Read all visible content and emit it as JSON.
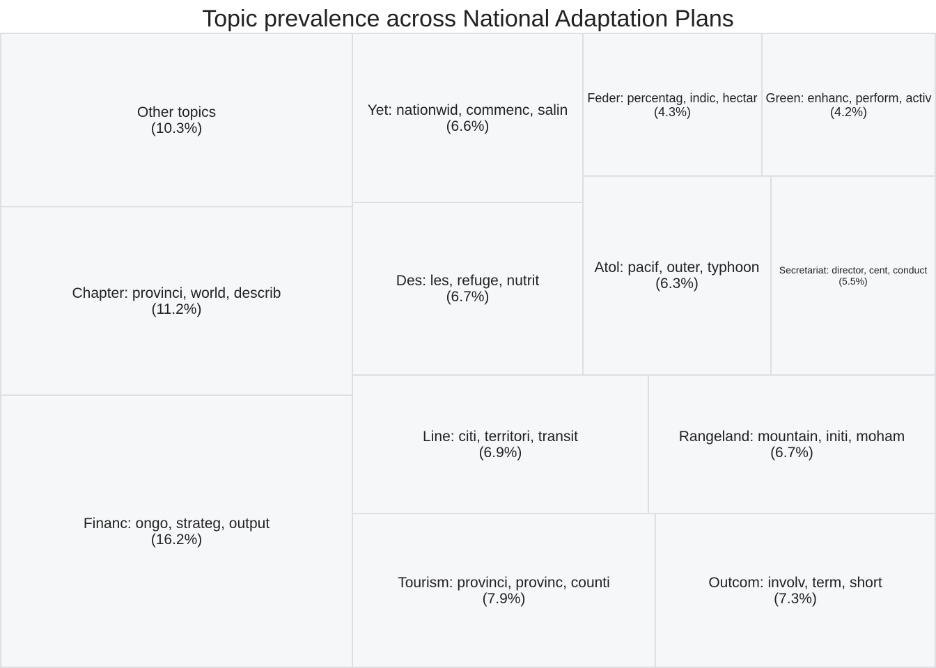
{
  "chart_data": {
    "type": "treemap",
    "title": "Topic prevalence across National Adaptation Plans",
    "colors": {
      "tile_fill": "#f6f7f9",
      "tile_border": "#dddfe3",
      "text": "#222222"
    },
    "items": [
      {
        "name": "Financ: ongo, strateg, output",
        "value": 16.2,
        "value_label": "(16.2%)"
      },
      {
        "name": "Chapter: provinci, world, describ",
        "value": 11.2,
        "value_label": "(11.2%)"
      },
      {
        "name": "Other topics",
        "value": 10.3,
        "value_label": "(10.3%)"
      },
      {
        "name": "Tourism: provinci, provinc, counti",
        "value": 7.9,
        "value_label": "(7.9%)"
      },
      {
        "name": "Outcom: involv, term, short",
        "value": 7.3,
        "value_label": "(7.3%)"
      },
      {
        "name": "Line: citi, territori, transit",
        "value": 6.9,
        "value_label": "(6.9%)"
      },
      {
        "name": "Rangeland: mountain, initi, moham",
        "value": 6.7,
        "value_label": "(6.7%)"
      },
      {
        "name": "Des: les, refuge, nutrit",
        "value": 6.7,
        "value_label": "(6.7%)"
      },
      {
        "name": "Yet: nationwid, commenc, salin",
        "value": 6.6,
        "value_label": "(6.6%)"
      },
      {
        "name": "Atol: pacif, outer, typhoon",
        "value": 6.3,
        "value_label": "(6.3%)"
      },
      {
        "name": "Secretariat: director, cent, conduct",
        "value": 5.5,
        "value_label": "(5.5%)"
      },
      {
        "name": "Feder: percentag, indic, hectar",
        "value": 4.3,
        "value_label": "(4.3%)"
      },
      {
        "name": "Green: enhanc, perform, activ",
        "value": 4.2,
        "value_label": "(4.2%)"
      }
    ]
  }
}
